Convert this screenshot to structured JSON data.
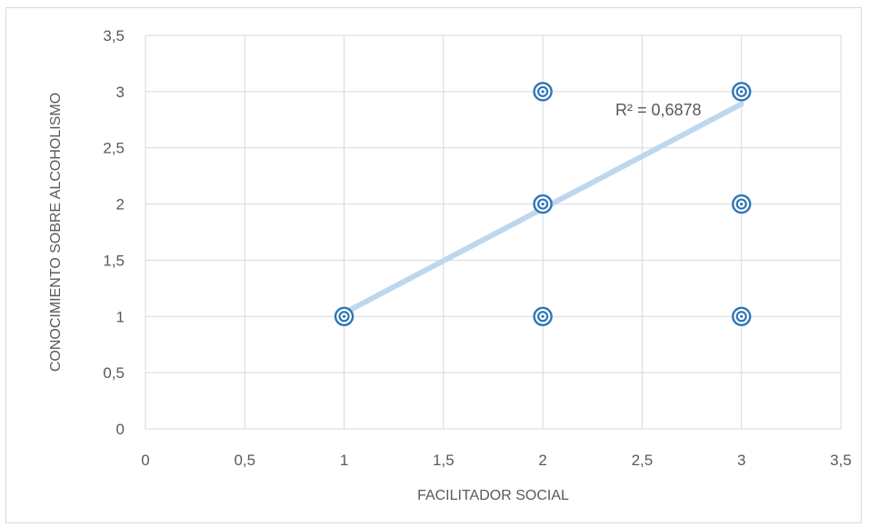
{
  "chart_data": {
    "type": "scatter",
    "xlabel": "FACILITADOR SOCIAL",
    "ylabel": "CONOCIMIENTO SOBRE ALCOHOLISMO",
    "xlim": [
      0,
      3.5
    ],
    "ylim": [
      0,
      3.5
    ],
    "x_ticks": [
      0,
      0.5,
      1,
      1.5,
      2,
      2.5,
      3,
      3.5
    ],
    "y_ticks": [
      0,
      0.5,
      1,
      1.5,
      2,
      2.5,
      3,
      3.5
    ],
    "x_tick_labels": [
      "0",
      "0,5",
      "1",
      "1,5",
      "2",
      "2,5",
      "3",
      "3,5"
    ],
    "y_tick_labels": [
      "0",
      "0,5",
      "1",
      "1,5",
      "2",
      "2,5",
      "3",
      "3,5"
    ],
    "grid": true,
    "points": [
      {
        "x": 1,
        "y": 1
      },
      {
        "x": 2,
        "y": 1
      },
      {
        "x": 2,
        "y": 2
      },
      {
        "x": 2,
        "y": 3
      },
      {
        "x": 3,
        "y": 1
      },
      {
        "x": 3,
        "y": 2
      },
      {
        "x": 3,
        "y": 3
      }
    ],
    "trendline": {
      "x": [
        1,
        3
      ],
      "y": [
        1.03,
        2.89
      ]
    },
    "annotation": "R² = 0,6878",
    "colors": {
      "marker": "#2e75b6",
      "trendline": "#bdd7ee",
      "grid": "#d9d9d9",
      "text": "#595959"
    }
  }
}
